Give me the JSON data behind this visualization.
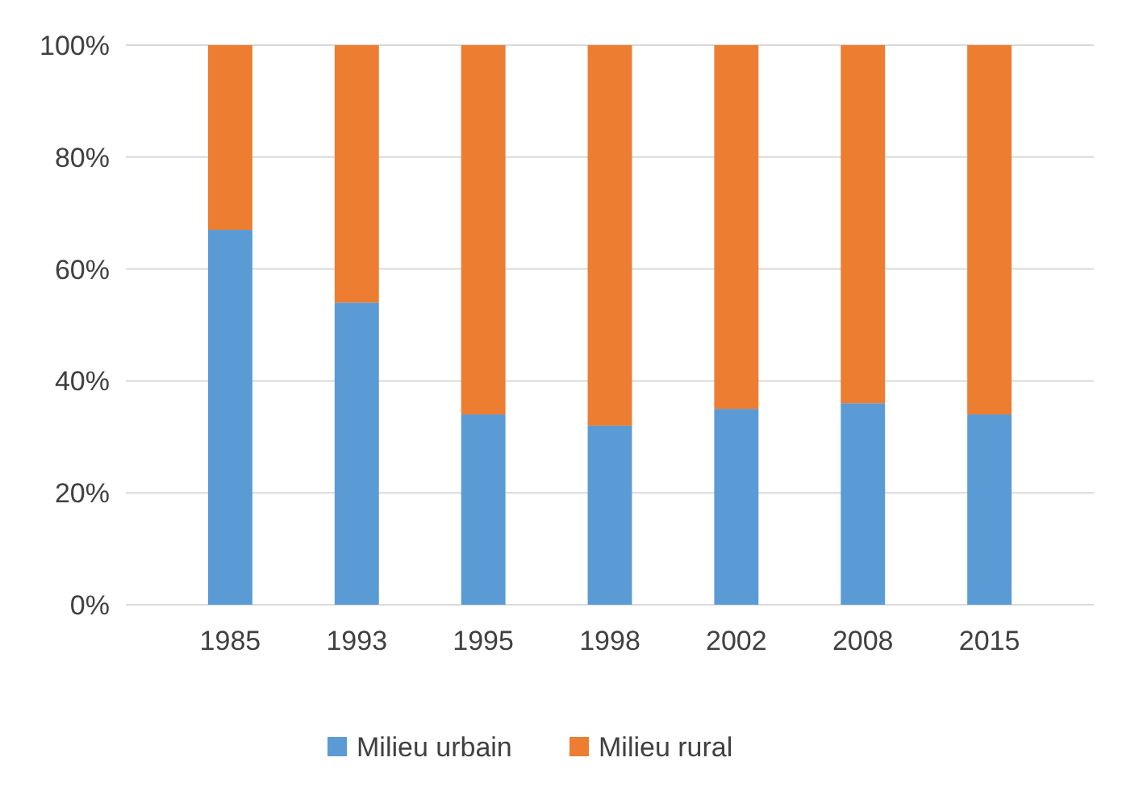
{
  "chart_data": {
    "type": "bar",
    "stacked": true,
    "categories": [
      "1985",
      "1993",
      "1995",
      "1998",
      "2002",
      "2008",
      "2015"
    ],
    "series": [
      {
        "name": "Milieu urbain",
        "color": "#5b9bd5",
        "values": [
          67,
          54,
          34,
          32,
          35,
          36,
          34
        ]
      },
      {
        "name": "Milieu rural",
        "color": "#ed7d31",
        "values": [
          33,
          46,
          66,
          68,
          65,
          64,
          66
        ]
      }
    ],
    "ylim": [
      0,
      100
    ],
    "yticks": [
      {
        "value": 0,
        "label": "0%"
      },
      {
        "value": 20,
        "label": "20%"
      },
      {
        "value": 40,
        "label": "40%"
      },
      {
        "value": 60,
        "label": "60%"
      },
      {
        "value": 80,
        "label": "80%"
      },
      {
        "value": 100,
        "label": "100%"
      }
    ],
    "grid": "y",
    "legend": "bottom"
  }
}
